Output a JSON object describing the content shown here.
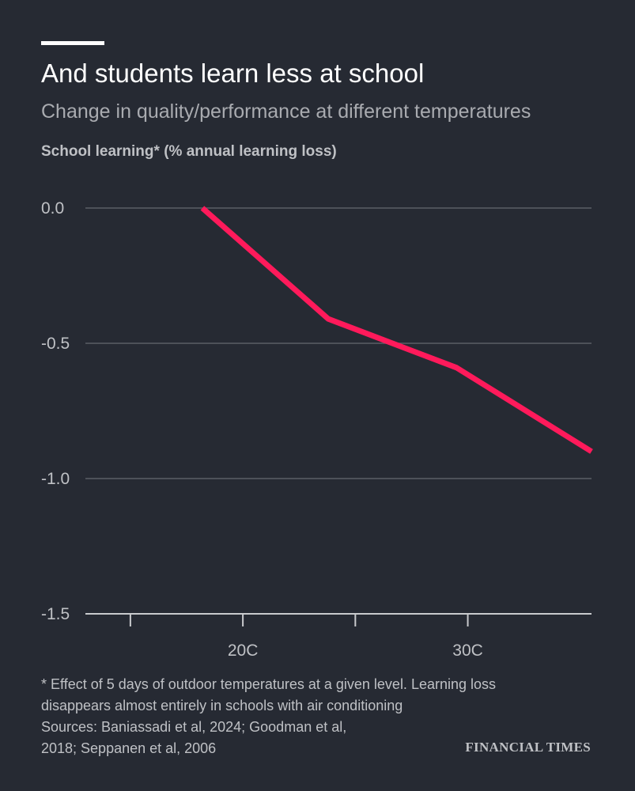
{
  "header": {
    "title": "And students learn less at school",
    "subtitle": "Change in quality/performance at different temperatures"
  },
  "chart_data": {
    "type": "line",
    "ylabel": "School learning* (% annual learning loss)",
    "xlabel": "",
    "ylim": [
      -1.5,
      0.0
    ],
    "xlim": [
      13,
      35.5
    ],
    "y_ticks": [
      {
        "value": 0.0,
        "label": "0.0"
      },
      {
        "value": -0.5,
        "label": "-0.5"
      },
      {
        "value": -1.0,
        "label": "-1.0"
      },
      {
        "value": -1.5,
        "label": "-1.5"
      }
    ],
    "x_ticks": [
      {
        "value": 15,
        "label": ""
      },
      {
        "value": 20,
        "label": "20C"
      },
      {
        "value": 25,
        "label": ""
      },
      {
        "value": 30,
        "label": "30C"
      }
    ],
    "grid": true,
    "series": [
      {
        "color": "#ff1a5b",
        "points": [
          {
            "x": 18.2,
            "y": 0.0
          },
          {
            "x": 23.8,
            "y": -0.41
          },
          {
            "x": 29.5,
            "y": -0.59
          },
          {
            "x": 35.5,
            "y": -0.9
          }
        ]
      }
    ]
  },
  "footer": {
    "note_line1": "* Effect of 5 days of outdoor temperatures at a given level. Learning loss",
    "note_line2": "disappears almost entirely in schools with air conditioning",
    "sources_line1": "Sources: Baniassadi et al, 2024; Goodman et al,",
    "sources_line2": "2018; Seppanen et al, 2006",
    "brand": "FINANCIAL TIMES"
  },
  "colors": {
    "background": "#262a33",
    "grid": "#5a5e66",
    "axis": "#c8cacd",
    "tick_text": "#bfc1c5",
    "line": "#ff1a5b"
  }
}
